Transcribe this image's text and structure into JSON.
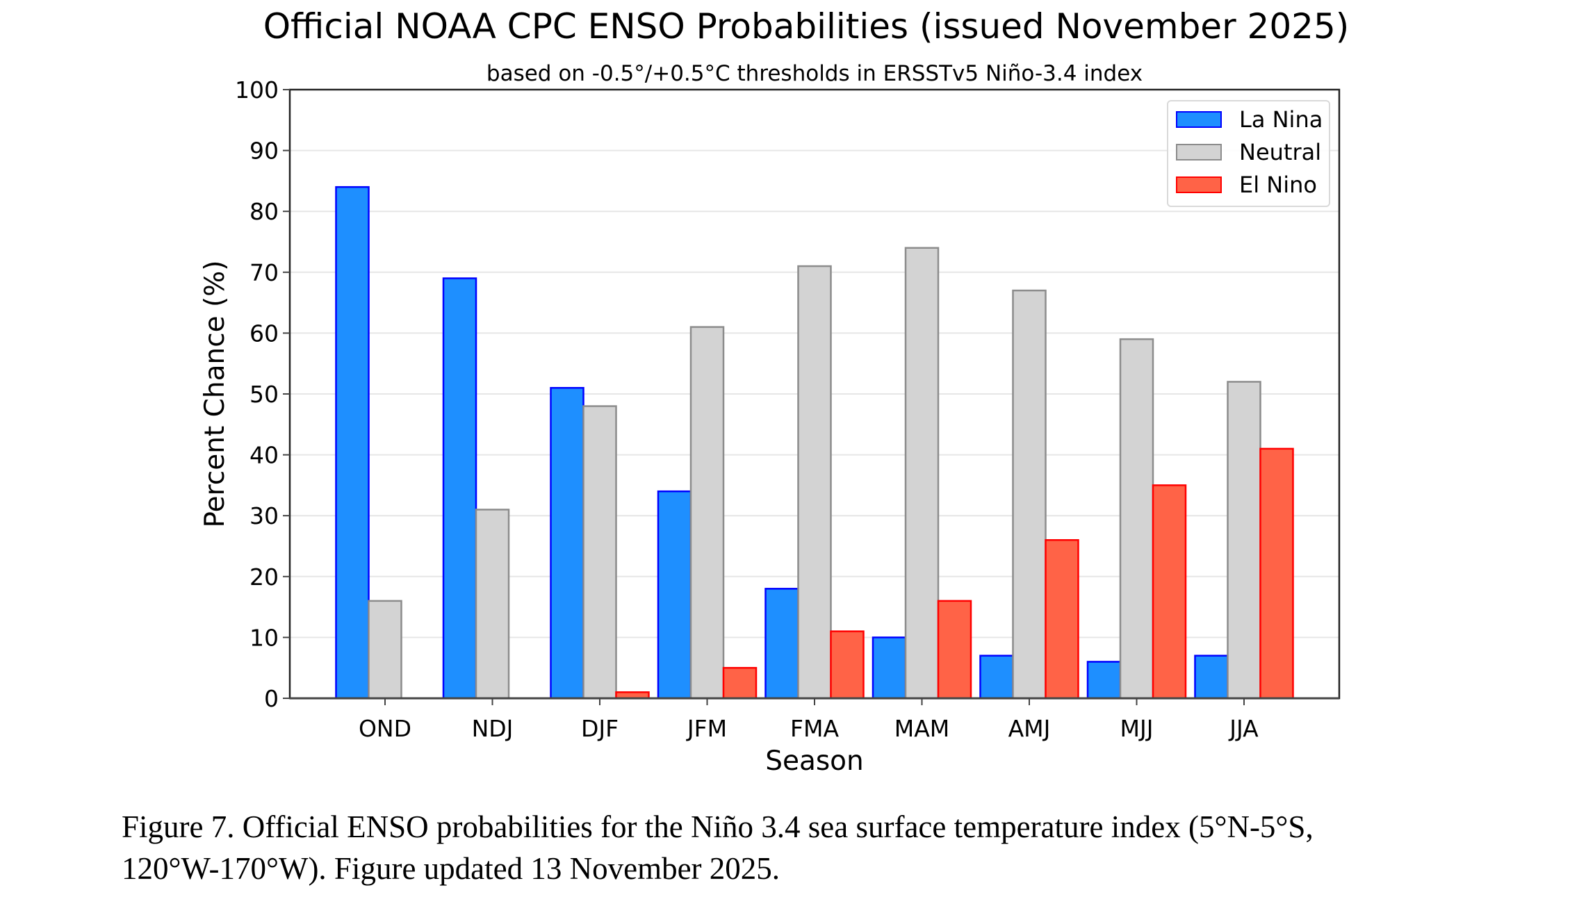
{
  "chart_data": {
    "type": "bar",
    "title": "Official NOAA CPC ENSO Probabilities (issued November 2025)",
    "subtitle": "based on -0.5°/+0.5°C thresholds in ERSSTv5 Niño-3.4 index",
    "xlabel": "Season",
    "ylabel": "Percent Chance (%)",
    "ylim": [
      0,
      100
    ],
    "yticks": [
      0,
      10,
      20,
      30,
      40,
      50,
      60,
      70,
      80,
      90,
      100
    ],
    "grid": "horizontal",
    "legend_position": "top-right",
    "categories": [
      "OND",
      "NDJ",
      "DJF",
      "JFM",
      "FMA",
      "MAM",
      "AMJ",
      "MJJ",
      "JJA"
    ],
    "series": [
      {
        "name": "La Nina",
        "fill": "#1e8fff",
        "edge": "#0000ff",
        "values": [
          84,
          69,
          51,
          34,
          18,
          10,
          7,
          6,
          7
        ]
      },
      {
        "name": "Neutral",
        "fill": "#d3d3d3",
        "edge": "#8c8c8c",
        "values": [
          16,
          31,
          48,
          61,
          71,
          74,
          67,
          59,
          52
        ]
      },
      {
        "name": "El Nino",
        "fill": "#ff6347",
        "edge": "#ff0000",
        "values": [
          0,
          0,
          1,
          5,
          11,
          16,
          26,
          35,
          41
        ]
      }
    ]
  },
  "caption": {
    "line1": "Figure 7. Official ENSO probabilities for the Niño 3.4 sea surface temperature index (5°N-5°S,",
    "line2": "120°W-170°W). Figure updated 13 November 2025."
  }
}
